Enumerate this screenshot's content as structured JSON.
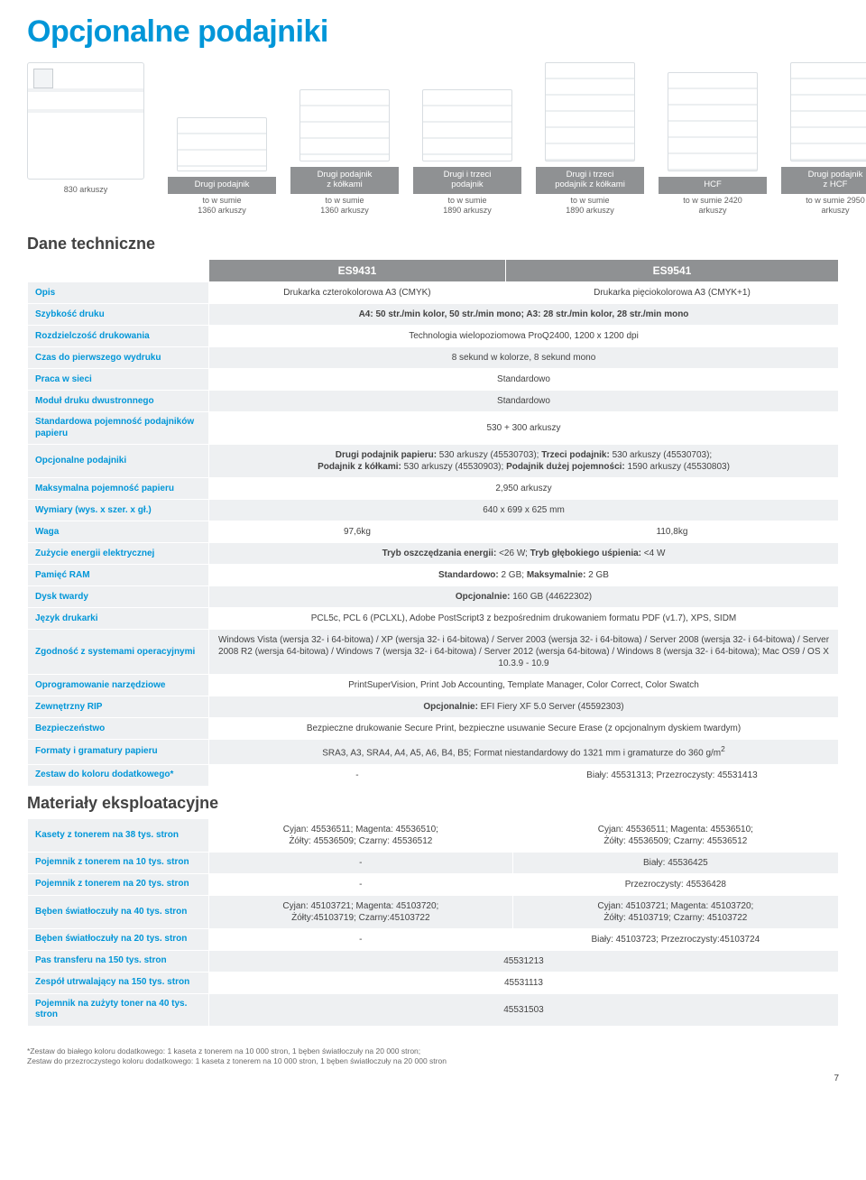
{
  "page_title": "Opcjonalne podajniki",
  "printer_caption": "830 arkuszy",
  "feeders": [
    {
      "header": "Drugi podajnik",
      "sub": "to w sumie\n1360 arkuszy",
      "size": "small"
    },
    {
      "header": "Drugi podajnik\nz kółkami",
      "sub": "to w sumie\n1360 arkuszy",
      "size": "normal"
    },
    {
      "header": "Drugi i trzeci\npodajnik",
      "sub": "to w sumie\n1890 arkuszy",
      "size": "normal"
    },
    {
      "header": "Drugi i trzeci\npodajnik z kółkami",
      "sub": "to w sumie\n1890 arkuszy",
      "size": "tall"
    },
    {
      "header": "HCF",
      "sub": "to w sumie 2420\narkuszy",
      "size": "tall"
    },
    {
      "header": "Drugi podajnik\nz HCF",
      "sub": "to w sumie 2950\narkuszy",
      "size": "tall"
    }
  ],
  "spec_header": {
    "title": "Dane techniczne",
    "col1": "ES9431",
    "col2": "ES9541"
  },
  "spec_rows": [
    {
      "label": "Opis",
      "v1": "Drukarka czterokolorowa A3 (CMYK)",
      "v2": "Drukarka pięciokolorowa A3 (CMYK+1)"
    },
    {
      "label": "Szybkość druku",
      "v": "A4: 50 str./min kolor, 50 str./min mono; A3: 28 str./min kolor, 28 str./min mono",
      "bold": true
    },
    {
      "label": "Rozdzielczość drukowania",
      "v": "Technologia wielopoziomowa ProQ2400, 1200 x 1200 dpi"
    },
    {
      "label": "Czas do pierwszego wydruku",
      "v": "8 sekund w kolorze, 8 sekund mono"
    },
    {
      "label": "Praca w sieci",
      "v": "Standardowo"
    },
    {
      "label": "Moduł druku dwustronnego",
      "v": "Standardowo"
    },
    {
      "label": "Standardowa pojemność podajników papieru",
      "v": "530 + 300 arkuszy"
    },
    {
      "label": "Opcjonalne podajniki",
      "v_html": "<strong>Drugi podajnik papieru:</strong> 530 arkuszy (45530703); <strong>Trzeci podajnik:</strong> 530 arkuszy (45530703);<br><strong>Podajnik z kółkami:</strong> 530 arkuszy (45530903); <strong>Podajnik dużej pojemności:</strong> 1590 arkuszy (45530803)"
    },
    {
      "label": "Maksymalna pojemność papieru",
      "v": "2,950 arkuszy"
    },
    {
      "label": "Wymiary (wys. x szer. x gł.)",
      "v": "640 x 699 x 625 mm"
    },
    {
      "label": "Waga",
      "v1": "97,6kg",
      "v2": "110,8kg"
    },
    {
      "label": "Zużycie energii elektrycznej",
      "v_html": "<strong>Tryb oszczędzania energii:</strong> &lt;26 W; <strong>Tryb głębokiego uśpienia:</strong> &lt;4 W"
    },
    {
      "label": "Pamięć RAM",
      "v_html": "<strong>Standardowo:</strong> 2 GB; <strong>Maksymalnie:</strong> 2 GB"
    },
    {
      "label": "Dysk twardy",
      "v_html": "<strong>Opcjonalnie:</strong> 160 GB (44622302)"
    },
    {
      "label": "Język drukarki",
      "v": "PCL5c, PCL 6 (PCLXL), Adobe PostScript3 z bezpośrednim drukowaniem formatu PDF (v1.7), XPS, SIDM"
    },
    {
      "label": "Zgodność z systemami operacyjnymi",
      "v": "Windows Vista (wersja 32- i 64-bitowa) / XP (wersja 32- i 64-bitowa) / Server 2003 (wersja 32- i 64-bitowa) / Server 2008 (wersja 32- i 64-bitowa) / Server 2008 R2 (wersja 64-bitowa) / Windows 7 (wersja 32- i 64-bitowa) / Server 2012 (wersja 64-bitowa) / Windows 8 (wersja 32- i 64-bitowa); Mac OS9 / OS X 10.3.9 - 10.9"
    },
    {
      "label": "Oprogramowanie narzędziowe",
      "v": "PrintSuperVision, Print Job Accounting, Template Manager, Color Correct, Color Swatch"
    },
    {
      "label": "Zewnętrzny RIP",
      "v_html": "<strong>Opcjonalnie:</strong> EFI Fiery XF 5.0 Server (45592303)"
    },
    {
      "label": "Bezpieczeństwo",
      "v": "Bezpieczne drukowanie Secure Print, bezpieczne usuwanie Secure Erase (z opcjonalnym dyskiem twardym)"
    },
    {
      "label": "Formaty i gramatury papieru",
      "v_html": "SRA3, A3, SRA4, A4, A5, A6, B4, B5; Format niestandardowy do 1321 mm i gramaturze do 360 g/m<sup>2</sup>"
    },
    {
      "label": "Zestaw do koloru dodatkowego*",
      "v1": "-",
      "v2": "Biały: 45531313; Przezroczysty: 45531413"
    }
  ],
  "mat_title": "Materiały eksploatacyjne",
  "mat_rows": [
    {
      "label": "Kasety z tonerem na 38 tys. stron",
      "v1": "Cyjan: 45536511; Magenta: 45536510;\nŻółty: 45536509; Czarny: 45536512",
      "v2": "Cyjan: 45536511; Magenta: 45536510;\nŻółty: 45536509; Czarny: 45536512"
    },
    {
      "label": "Pojemnik z tonerem na 10 tys. stron",
      "v1": "-",
      "v2": "Biały: 45536425"
    },
    {
      "label": "Pojemnik z tonerem na 20 tys. stron",
      "v1": "-",
      "v2": "Przezroczysty: 45536428"
    },
    {
      "label": "Bęben światłoczuły na 40 tys. stron",
      "v1": "Cyjan: 45103721; Magenta: 45103720;\nŻółty:45103719; Czarny:45103722",
      "v2": "Cyjan: 45103721; Magenta: 45103720;\nŻółty: 45103719; Czarny: 45103722"
    },
    {
      "label": "Bęben światłoczuły na 20 tys. stron",
      "v1": "-",
      "v2": "Biały: 45103723; Przezroczysty:45103724"
    },
    {
      "label": "Pas transferu na 150 tys. stron",
      "v": "45531213"
    },
    {
      "label": "Zespół utrwalający na 150 tys. stron",
      "v": "45531113"
    },
    {
      "label": "Pojemnik na zużyty toner na 40 tys. stron",
      "v": "45531503"
    }
  ],
  "footnote": "*Zestaw do białego koloru dodatkowego: 1 kaseta z tonerem na 10 000 stron, 1 bęben światłoczuły na 20 000 stron;\nZestaw do przezroczystego koloru dodatkowego: 1 kaseta z tonerem na 10 000 stron, 1 bęben światłoczuły na 20 000 stron",
  "page_number": "7",
  "colors": {
    "accent_blue": "#0096d8",
    "header_gray": "#8f9193",
    "row_gray": "#eef0f2",
    "text_gray": "#424242"
  }
}
